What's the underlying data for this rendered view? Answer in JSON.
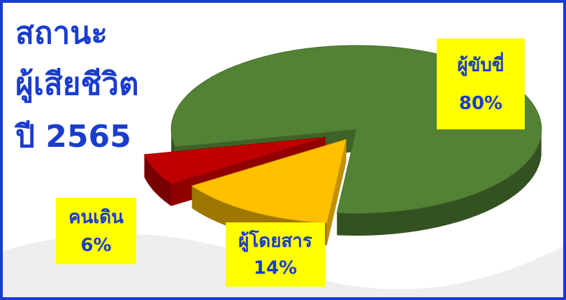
{
  "chart_data": {
    "type": "pie3d",
    "title": [
      "สถานะ",
      "ผู้เสียชีวิต",
      "ปี 2565"
    ],
    "categories": [
      "ผู้ขับขี่",
      "ผู้โดยสาร",
      "คนเดิน"
    ],
    "values": [
      80,
      14,
      6
    ],
    "value_labels": [
      "80%",
      "14%",
      "6%"
    ],
    "colors": [
      "#548235",
      "#ffc000",
      "#c00000"
    ]
  }
}
